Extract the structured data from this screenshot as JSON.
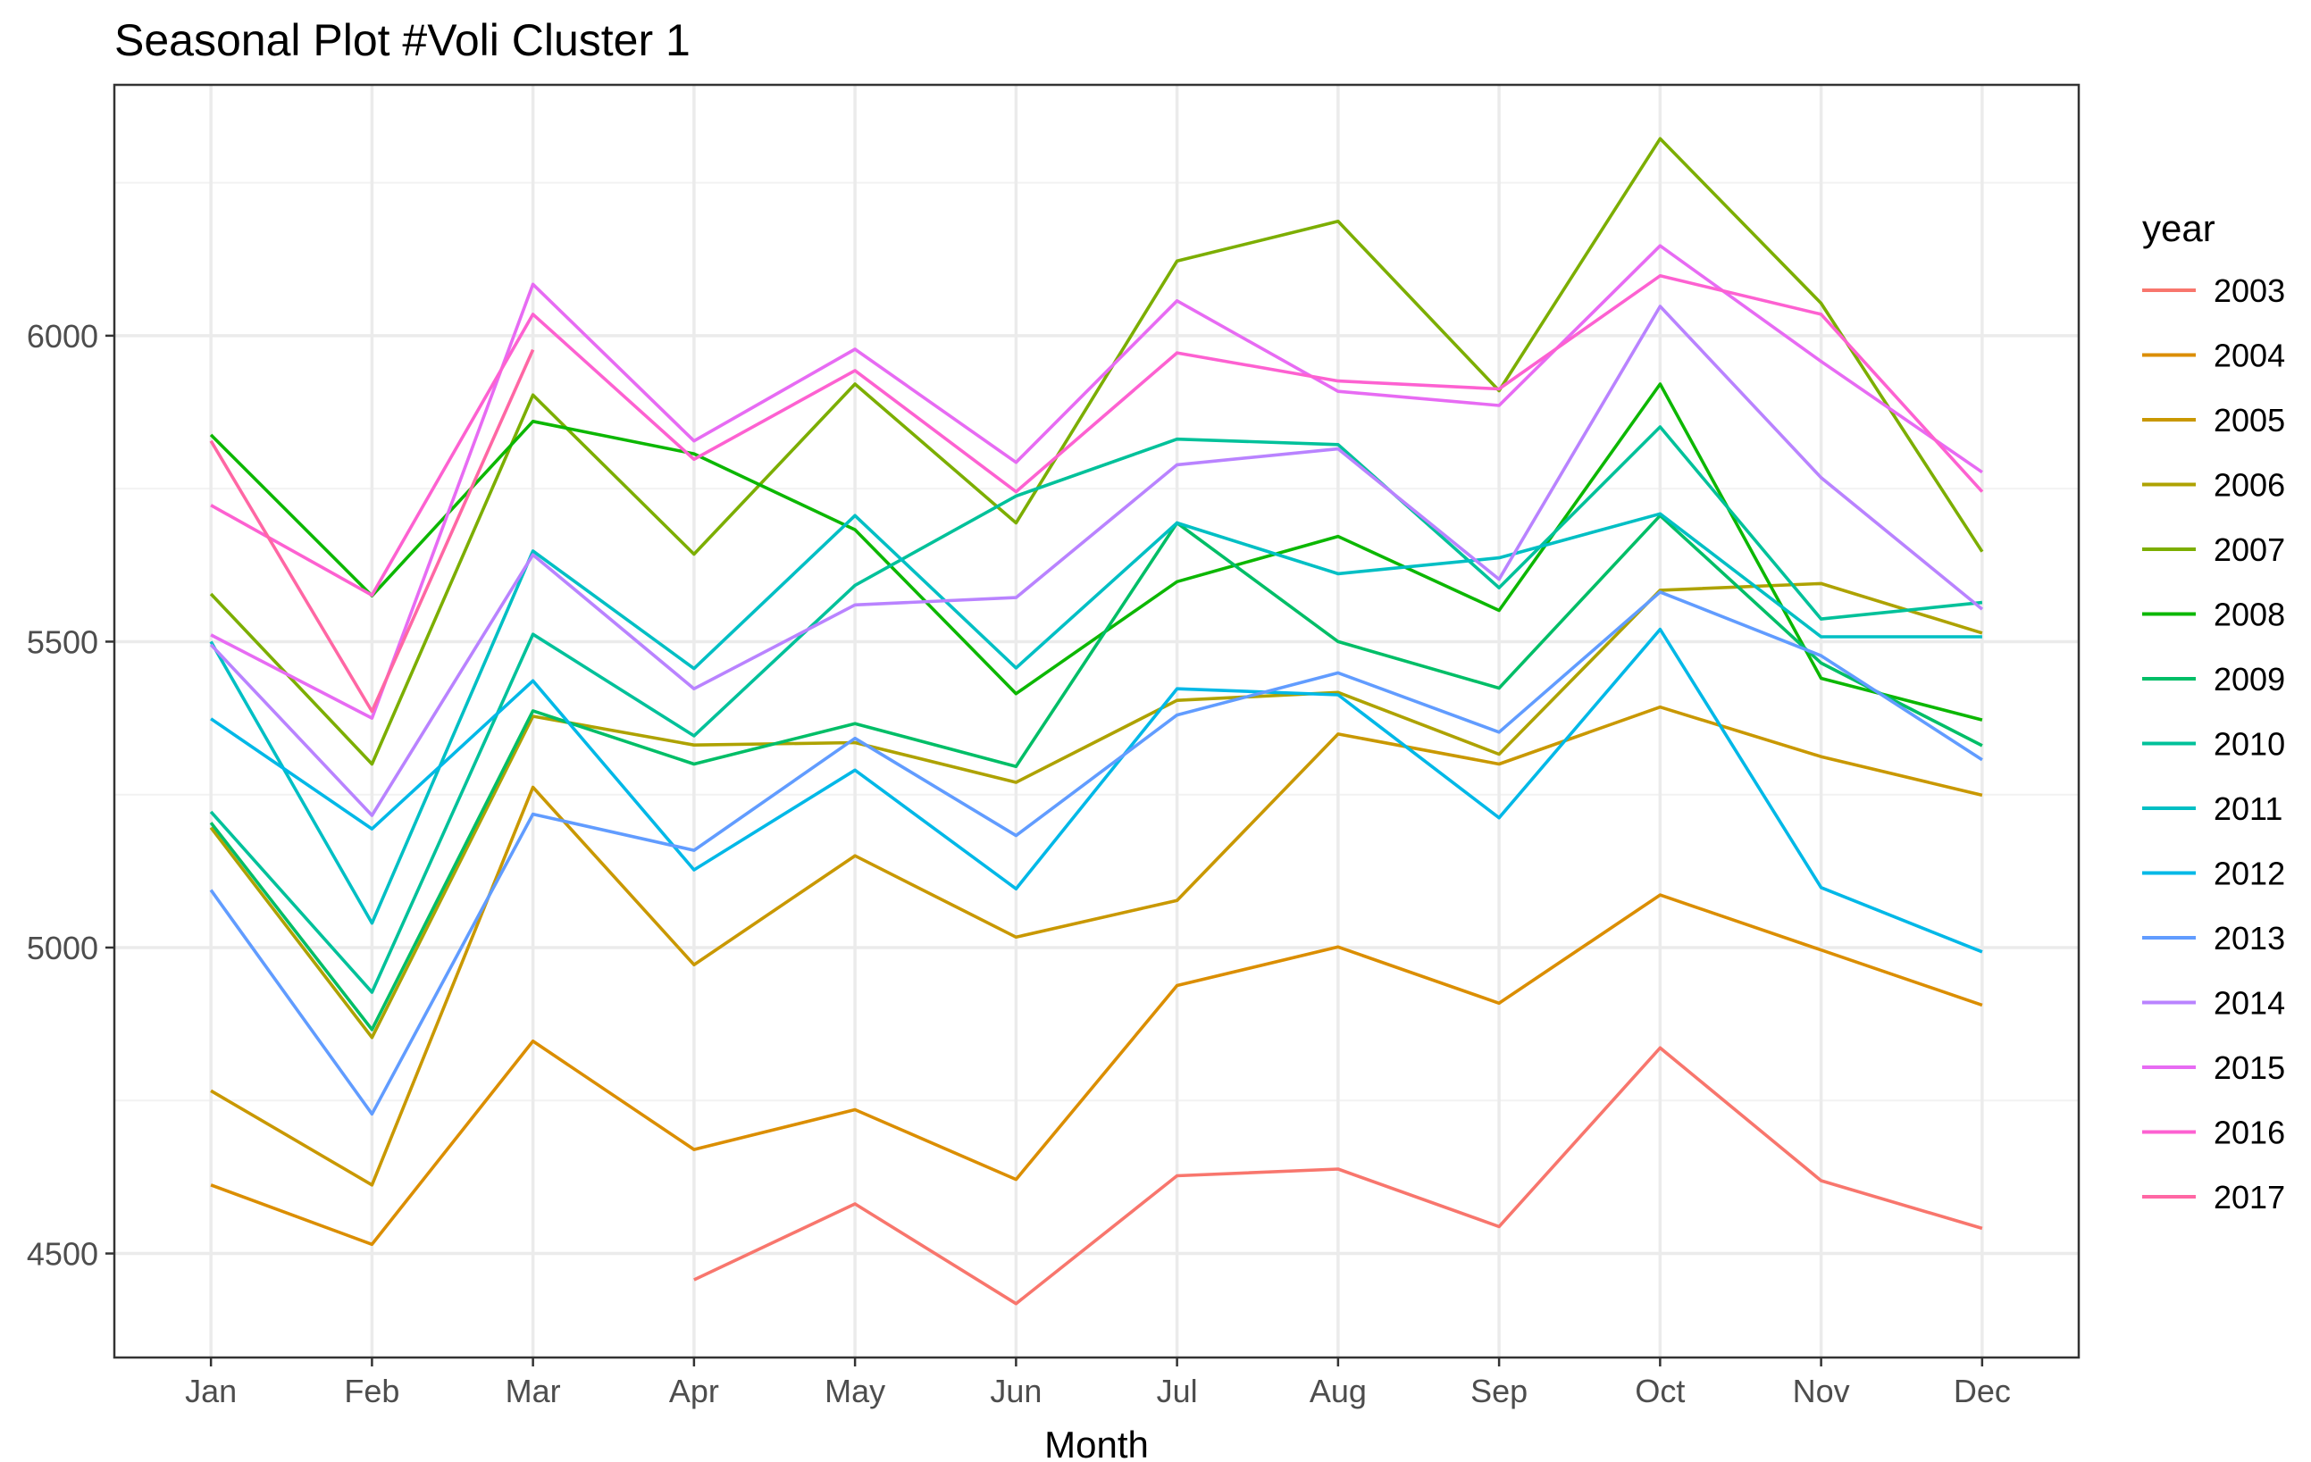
{
  "chart_data": {
    "type": "line",
    "title": "Seasonal Plot #Voli Cluster  1",
    "xlabel": "Month",
    "ylabel": "",
    "categories": [
      "Jan",
      "Feb",
      "Mar",
      "Apr",
      "May",
      "Jun",
      "Jul",
      "Aug",
      "Sep",
      "Oct",
      "Nov",
      "Dec"
    ],
    "y_ticks": [
      4500,
      5000,
      5500,
      6000
    ],
    "ylim": [
      4330,
      6410
    ],
    "grid": true,
    "legend": {
      "title": "year",
      "position": "right"
    },
    "series": [
      {
        "name": "2003",
        "color": "#F8766D",
        "values": [
          null,
          null,
          null,
          4457,
          4581,
          4418,
          4627,
          4638,
          4544,
          4836,
          4619,
          4541
        ]
      },
      {
        "name": "2004",
        "color": "#DB8E00",
        "values": [
          4612,
          4515,
          4847,
          4670,
          4735,
          4621,
          4938,
          5001,
          4909,
          5086,
          4996,
          4906
        ]
      },
      {
        "name": "2005",
        "color": "#C99800",
        "values": [
          4766,
          4612,
          5262,
          4972,
          5150,
          5017,
          5077,
          5349,
          5300,
          5393,
          5312,
          5249
        ]
      },
      {
        "name": "2006",
        "color": "#AEA200",
        "values": [
          5196,
          4853,
          5378,
          5331,
          5335,
          5270,
          5404,
          5417,
          5316,
          5584,
          5595,
          5514
        ]
      },
      {
        "name": "2007",
        "color": "#7CAE00",
        "values": [
          5578,
          5300,
          5903,
          5643,
          5921,
          5694,
          6122,
          6187,
          5910,
          6322,
          6053,
          5647
        ]
      },
      {
        "name": "2008",
        "color": "#0CB702",
        "values": [
          5838,
          5575,
          5860,
          5807,
          5683,
          5415,
          5598,
          5672,
          5551,
          5921,
          5440,
          5372
        ]
      },
      {
        "name": "2009",
        "color": "#00BE67",
        "values": [
          5204,
          4866,
          5387,
          5300,
          5366,
          5296,
          5694,
          5500,
          5424,
          5706,
          5465,
          5330
        ]
      },
      {
        "name": "2010",
        "color": "#00C19A",
        "values": [
          5222,
          4927,
          5512,
          5346,
          5592,
          5738,
          5831,
          5822,
          5588,
          5851,
          5537,
          5564
        ]
      },
      {
        "name": "2011",
        "color": "#00BFC4",
        "values": [
          5500,
          5040,
          5648,
          5456,
          5706,
          5457,
          5694,
          5611,
          5637,
          5709,
          5508,
          5508
        ]
      },
      {
        "name": "2012",
        "color": "#00B8E7",
        "values": [
          5374,
          5194,
          5436,
          5127,
          5290,
          5096,
          5423,
          5413,
          5212,
          5520,
          5098,
          4993
        ]
      },
      {
        "name": "2013",
        "color": "#619CFF",
        "values": [
          5094,
          4728,
          5218,
          5159,
          5342,
          5183,
          5380,
          5449,
          5352,
          5581,
          5477,
          5307
        ]
      },
      {
        "name": "2014",
        "color": "#B983FF",
        "values": [
          5495,
          5216,
          5642,
          5423,
          5560,
          5572,
          5789,
          5815,
          5602,
          6048,
          5768,
          5553
        ]
      },
      {
        "name": "2015",
        "color": "#E76BF3",
        "values": [
          5511,
          5375,
          6084,
          5828,
          5978,
          5793,
          6057,
          5909,
          5886,
          6147,
          5958,
          5777
        ]
      },
      {
        "name": "2016",
        "color": "#FD61D1",
        "values": [
          5723,
          5576,
          6035,
          5798,
          5943,
          5745,
          5972,
          5926,
          5913,
          6098,
          6035,
          5745
        ]
      },
      {
        "name": "2017",
        "color": "#FF67A4",
        "values": [
          5828,
          5386,
          5977,
          null,
          null,
          null,
          null,
          null,
          null,
          null,
          null,
          null
        ]
      }
    ]
  }
}
